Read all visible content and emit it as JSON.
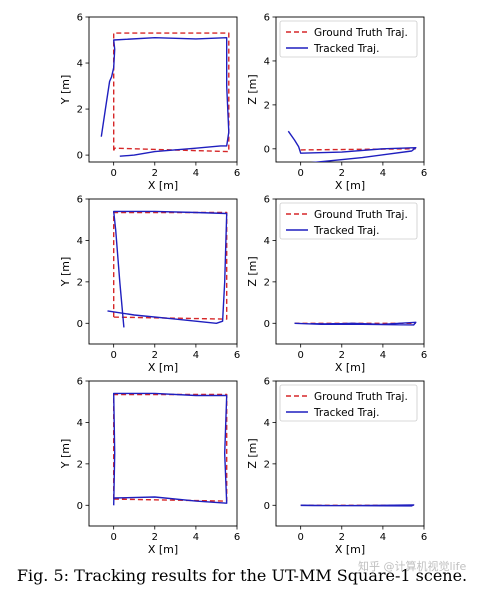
{
  "caption": "Fig. 5: Tracking results for the UT-MM Square-1 scene.",
  "watermark": "知乎 @计算机视觉life",
  "colors": {
    "ground_truth": "#d62728",
    "tracked": "#1f1fbf",
    "axes": "#000000"
  },
  "chart_data": [
    {
      "type": "line",
      "row": 1,
      "col": 1,
      "xlabel": "X [m]",
      "ylabel": "Y [m]",
      "xlim": [
        -1.2,
        6
      ],
      "ylim": [
        -0.3,
        6
      ],
      "xticks": [
        0,
        2,
        4,
        6
      ],
      "yticks": [
        0,
        2,
        4,
        6
      ],
      "legend": null,
      "series": [
        {
          "name": "Ground Truth Traj.",
          "style": "dashed",
          "color": "ground_truth",
          "x": [
            0.0,
            0.0,
            5.6,
            5.6,
            0.05,
            0.0
          ],
          "y": [
            0.2,
            5.3,
            5.3,
            0.15,
            0.3,
            0.2
          ]
        },
        {
          "name": "Tracked Traj.",
          "style": "solid",
          "color": "tracked",
          "x": [
            -0.6,
            -0.4,
            -0.2,
            -0.1,
            0.0,
            0.05,
            0.0,
            2.0,
            4.0,
            5.5,
            5.5,
            5.6,
            5.5,
            5.2,
            4.0,
            2.0,
            1.0,
            0.3
          ],
          "y": [
            0.8,
            2.0,
            3.2,
            3.4,
            3.8,
            4.6,
            5.0,
            5.1,
            5.05,
            5.1,
            3.0,
            1.0,
            0.4,
            0.4,
            0.3,
            0.15,
            0.0,
            -0.05
          ]
        }
      ]
    },
    {
      "type": "line",
      "row": 1,
      "col": 2,
      "xlabel": "X [m]",
      "ylabel": "Z [m]",
      "xlim": [
        -1.2,
        6
      ],
      "ylim": [
        -0.6,
        6
      ],
      "xticks": [
        0,
        2,
        4,
        6
      ],
      "yticks": [
        0,
        2,
        4,
        6
      ],
      "legend": "top-left",
      "series": [
        {
          "name": "Ground Truth Traj.",
          "style": "dashed",
          "color": "ground_truth",
          "x": [
            0.0,
            5.6
          ],
          "y": [
            -0.05,
            0.0
          ]
        },
        {
          "name": "Tracked Traj.",
          "style": "solid",
          "color": "tracked",
          "x": [
            -0.6,
            -0.3,
            -0.1,
            0.0,
            2.0,
            4.0,
            5.6,
            5.4,
            3.0,
            0.3
          ],
          "y": [
            0.8,
            0.4,
            0.1,
            -0.2,
            -0.15,
            0.0,
            0.05,
            -0.1,
            -0.4,
            -0.65
          ]
        }
      ]
    },
    {
      "type": "line",
      "row": 2,
      "col": 1,
      "xlabel": "X [m]",
      "ylabel": "Y [m]",
      "xlim": [
        -1.2,
        6
      ],
      "ylim": [
        -1.0,
        6
      ],
      "xticks": [
        0,
        2,
        4,
        6
      ],
      "yticks": [
        0,
        2,
        4,
        6
      ],
      "legend": null,
      "series": [
        {
          "name": "Ground Truth Traj.",
          "style": "dashed",
          "color": "ground_truth",
          "x": [
            0.0,
            0.0,
            5.5,
            5.5,
            0.0,
            0.0
          ],
          "y": [
            0.3,
            5.35,
            5.35,
            0.2,
            0.3,
            0.3
          ]
        },
        {
          "name": "Tracked Traj.",
          "style": "solid",
          "color": "tracked",
          "x": [
            0.5,
            0.3,
            0.1,
            0.0,
            2.0,
            4.0,
            5.5,
            5.4,
            5.3,
            5.0,
            3.0,
            1.0,
            -0.3
          ],
          "y": [
            -0.2,
            2.0,
            4.5,
            5.4,
            5.4,
            5.35,
            5.3,
            2.0,
            0.1,
            0.0,
            0.2,
            0.4,
            0.6
          ]
        }
      ]
    },
    {
      "type": "line",
      "row": 2,
      "col": 2,
      "xlabel": "X [m]",
      "ylabel": "Z [m]",
      "xlim": [
        -1.2,
        6
      ],
      "ylim": [
        -1.0,
        6
      ],
      "xticks": [
        0,
        2,
        4,
        6
      ],
      "yticks": [
        0,
        2,
        4,
        6
      ],
      "legend": "top-left",
      "series": [
        {
          "name": "Ground Truth Traj.",
          "style": "dashed",
          "color": "ground_truth",
          "x": [
            -0.3,
            5.6
          ],
          "y": [
            0.0,
            0.0
          ]
        },
        {
          "name": "Tracked Traj.",
          "style": "solid",
          "color": "tracked",
          "x": [
            -0.3,
            1.0,
            2.5,
            4.0,
            5.6,
            5.5,
            3.0,
            0.5
          ],
          "y": [
            0.0,
            -0.05,
            0.0,
            -0.05,
            0.05,
            -0.08,
            -0.05,
            -0.02
          ]
        }
      ]
    },
    {
      "type": "line",
      "row": 3,
      "col": 1,
      "xlabel": "X [m]",
      "ylabel": "Y [m]",
      "xlim": [
        -1.2,
        6
      ],
      "ylim": [
        -1.0,
        6
      ],
      "xticks": [
        0,
        2,
        4,
        6
      ],
      "yticks": [
        0,
        2,
        4,
        6
      ],
      "legend": null,
      "series": [
        {
          "name": "Ground Truth Traj.",
          "style": "dashed",
          "color": "ground_truth",
          "x": [
            0.0,
            0.0,
            5.5,
            5.5,
            0.0,
            0.0
          ],
          "y": [
            0.3,
            5.35,
            5.35,
            0.2,
            0.3,
            0.3
          ]
        },
        {
          "name": "Tracked Traj.",
          "style": "solid",
          "color": "tracked",
          "x": [
            0.0,
            0.05,
            0.0,
            2.0,
            4.0,
            5.5,
            5.4,
            5.5,
            4.0,
            2.0,
            0.0
          ],
          "y": [
            0.0,
            2.5,
            5.4,
            5.4,
            5.3,
            5.3,
            2.5,
            0.1,
            0.2,
            0.4,
            0.35
          ]
        }
      ]
    },
    {
      "type": "line",
      "row": 3,
      "col": 2,
      "xlabel": "X [m]",
      "ylabel": "Z [m]",
      "xlim": [
        -1.2,
        6
      ],
      "ylim": [
        -1.0,
        6
      ],
      "xticks": [
        0,
        2,
        4,
        6
      ],
      "yticks": [
        0,
        2,
        4,
        6
      ],
      "legend": "top-left",
      "series": [
        {
          "name": "Ground Truth Traj.",
          "style": "dashed",
          "color": "ground_truth",
          "x": [
            0.0,
            5.5
          ],
          "y": [
            0.0,
            0.0
          ]
        },
        {
          "name": "Tracked Traj.",
          "style": "solid",
          "color": "tracked",
          "x": [
            0.0,
            2.0,
            4.0,
            5.5,
            5.4,
            3.0,
            0.0
          ],
          "y": [
            0.0,
            -0.02,
            0.0,
            0.02,
            -0.03,
            -0.02,
            -0.01
          ]
        }
      ]
    }
  ]
}
